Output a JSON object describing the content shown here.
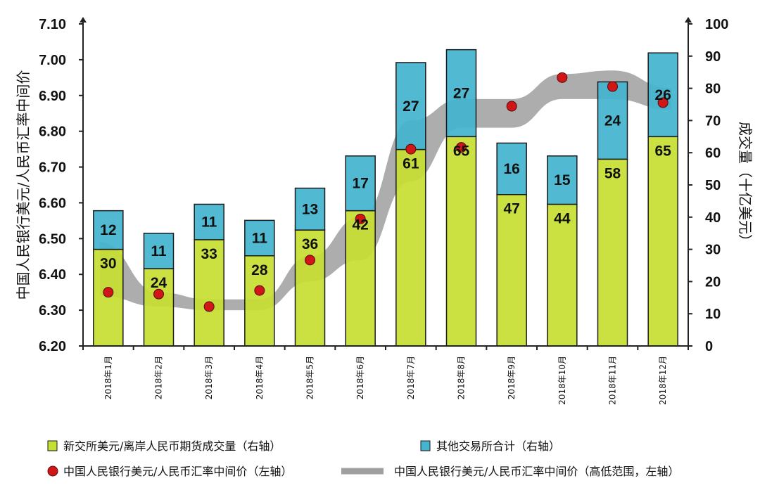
{
  "chart_data": {
    "type": "bar",
    "categories": [
      "2018年1月",
      "2018年2月",
      "2018年3月",
      "2018年4月",
      "2018年5月",
      "2018年6月",
      "2018年7月",
      "2018年8月",
      "2018年9月",
      "2018年10月",
      "2018年11月",
      "2018年12月"
    ],
    "series": [
      {
        "name": "新交所美元/离岸人民币期货成交量（右轴）",
        "axis": "right",
        "stack": "volume",
        "color": "#c6df33",
        "values": [
          30,
          24,
          33,
          28,
          36,
          42,
          61,
          65,
          47,
          44,
          58,
          65
        ]
      },
      {
        "name": "其他交易所合计（右轴）",
        "axis": "right",
        "stack": "volume",
        "color": "#44b4cf",
        "values": [
          12,
          11,
          11,
          11,
          13,
          17,
          27,
          27,
          16,
          15,
          24,
          26
        ]
      },
      {
        "name": "中国人民银行美元/人民币汇率中间价（左轴）",
        "axis": "left",
        "type": "scatter",
        "color": "#d01616",
        "values": [
          6.35,
          6.345,
          6.31,
          6.355,
          6.44,
          6.555,
          6.75,
          6.755,
          6.87,
          6.95,
          6.925,
          6.88
        ]
      },
      {
        "name": "中国人民银行美元/人民币汇率中间价（高低范围，左轴）",
        "axis": "left",
        "type": "area",
        "color": "#9f9f9f",
        "low": [
          6.34,
          6.31,
          6.3,
          6.3,
          6.38,
          6.44,
          6.66,
          6.81,
          6.81,
          6.89,
          6.89,
          6.86
        ],
        "high": [
          6.49,
          6.35,
          6.33,
          6.33,
          6.45,
          6.56,
          6.83,
          6.89,
          6.89,
          6.96,
          6.97,
          6.92
        ]
      }
    ],
    "y_left": {
      "label": "中国人民银行美元/人民币汇率中间价",
      "ylim": [
        6.2,
        7.1
      ],
      "ticks": [
        "6.20",
        "6.30",
        "6.40",
        "6.50",
        "6.60",
        "6.70",
        "6.80",
        "6.90",
        "7.00",
        "7.10"
      ]
    },
    "y_right": {
      "label": "成交量（十亿美元）",
      "ylim": [
        0,
        100
      ],
      "ticks": [
        "0",
        "10",
        "20",
        "30",
        "40",
        "50",
        "60",
        "70",
        "80",
        "90",
        "100"
      ]
    },
    "grid": false,
    "legend_position": "bottom"
  }
}
